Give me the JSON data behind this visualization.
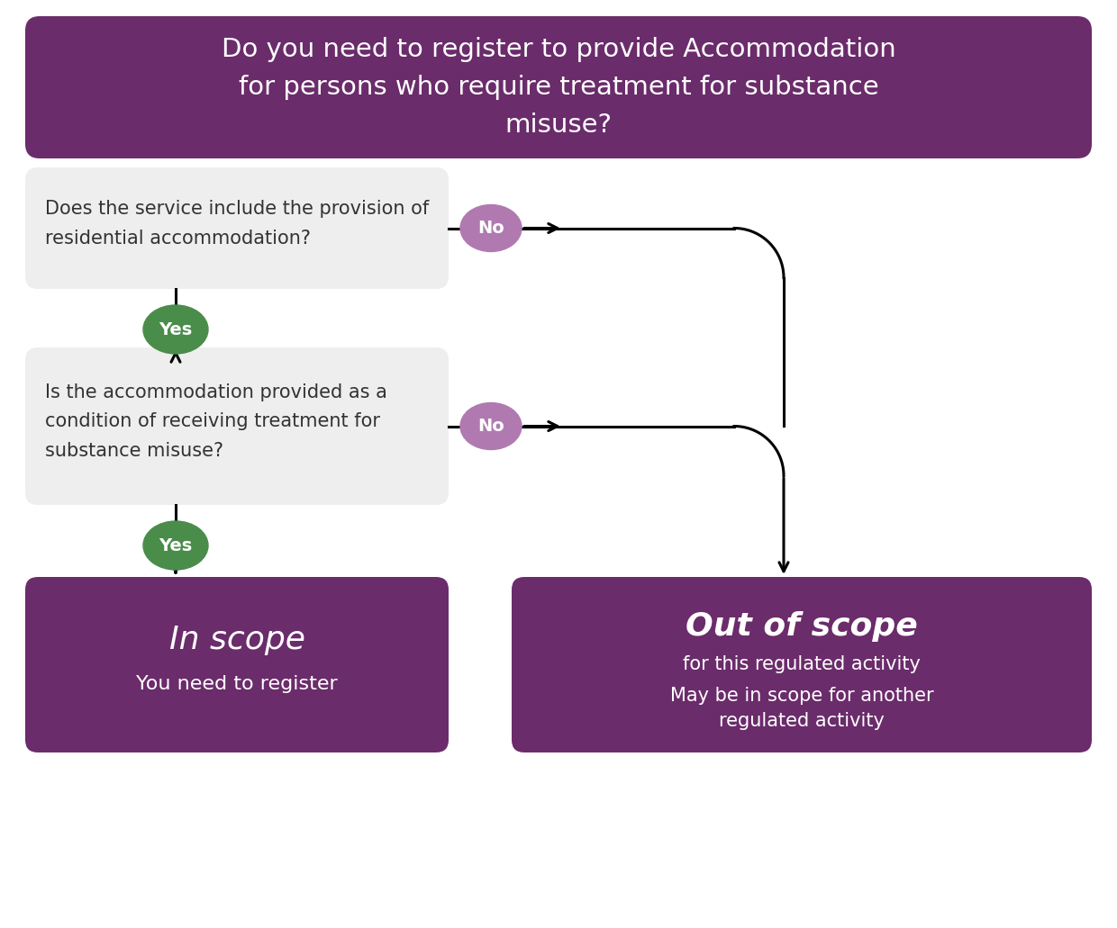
{
  "bg_color": "#ffffff",
  "purple_dark": "#6b2c6b",
  "purple_light": "#b07ab0",
  "green": "#4a8c4a",
  "box_bg": "#eeeeee",
  "title_text": "Do you need to register to provide Accommodation\nfor persons who require treatment for substance\nmisuse?",
  "q1_text": "Does the service include the provision of\nresidential accommodation?",
  "q2_text": "Is the accommodation provided as a\ncondition of receiving treatment for\nsubstance misuse?",
  "inscope_title": "In scope",
  "inscope_sub": "You need to register",
  "outscope_title": "Out of scope",
  "outscope_sub1": "for this regulated activity",
  "outscope_sub2": "May be in scope for another\nregulated activity"
}
